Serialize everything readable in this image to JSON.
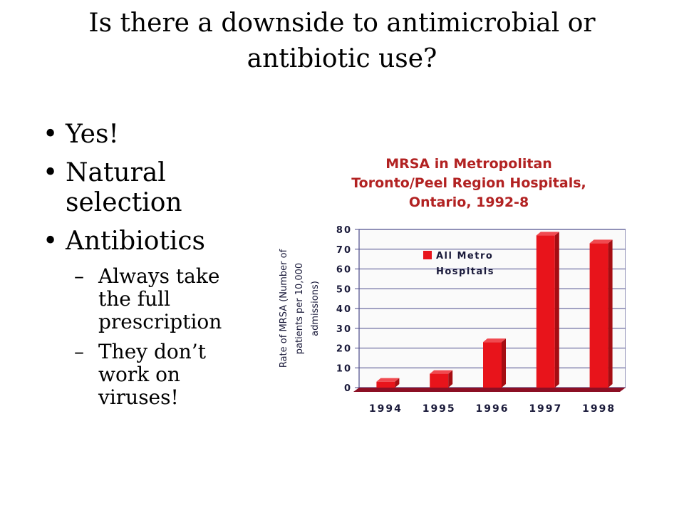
{
  "slide": {
    "title": "Is there a downside to antimicrobial or antibiotic use?",
    "bullets": [
      {
        "text": "Yes!"
      },
      {
        "text": "Natural selection"
      },
      {
        "text": "Antibiotics"
      }
    ],
    "sub_bullets": [
      {
        "text": "Always take the full prescription"
      },
      {
        "text": "They don’t work on viruses!"
      }
    ],
    "bullet_glyph": "•",
    "dash_glyph": "–"
  },
  "chart_data": {
    "type": "bar",
    "title_lines": [
      "MRSA in Metropolitan",
      "Toronto/Peel Region Hospitals,",
      "Ontario, 1992-8"
    ],
    "ylabel_lines": [
      "Rate of MRSA (Number of",
      "patients per 10,000",
      "admissions)"
    ],
    "xlabel": "",
    "categories": [
      "1994",
      "1995",
      "1996",
      "1997",
      "1998"
    ],
    "series": [
      {
        "name": "All Metro Hospitals",
        "values": [
          3,
          7,
          23,
          77,
          73
        ]
      }
    ],
    "ylim": [
      0,
      80
    ],
    "yticks": [
      "0",
      "10",
      "20",
      "30",
      "40",
      "50",
      "60",
      "70",
      "80"
    ],
    "legend_lines": [
      "All Metro",
      "Hospitals"
    ],
    "legend_position": "top-left",
    "grid": true,
    "colors": {
      "title": "#b22222",
      "bar": "#e8141b",
      "bar_dark": "#a50d12",
      "grid": "#4a4a8a",
      "axis_text": "#1a1a3a",
      "floor": "#8c0f24"
    }
  }
}
